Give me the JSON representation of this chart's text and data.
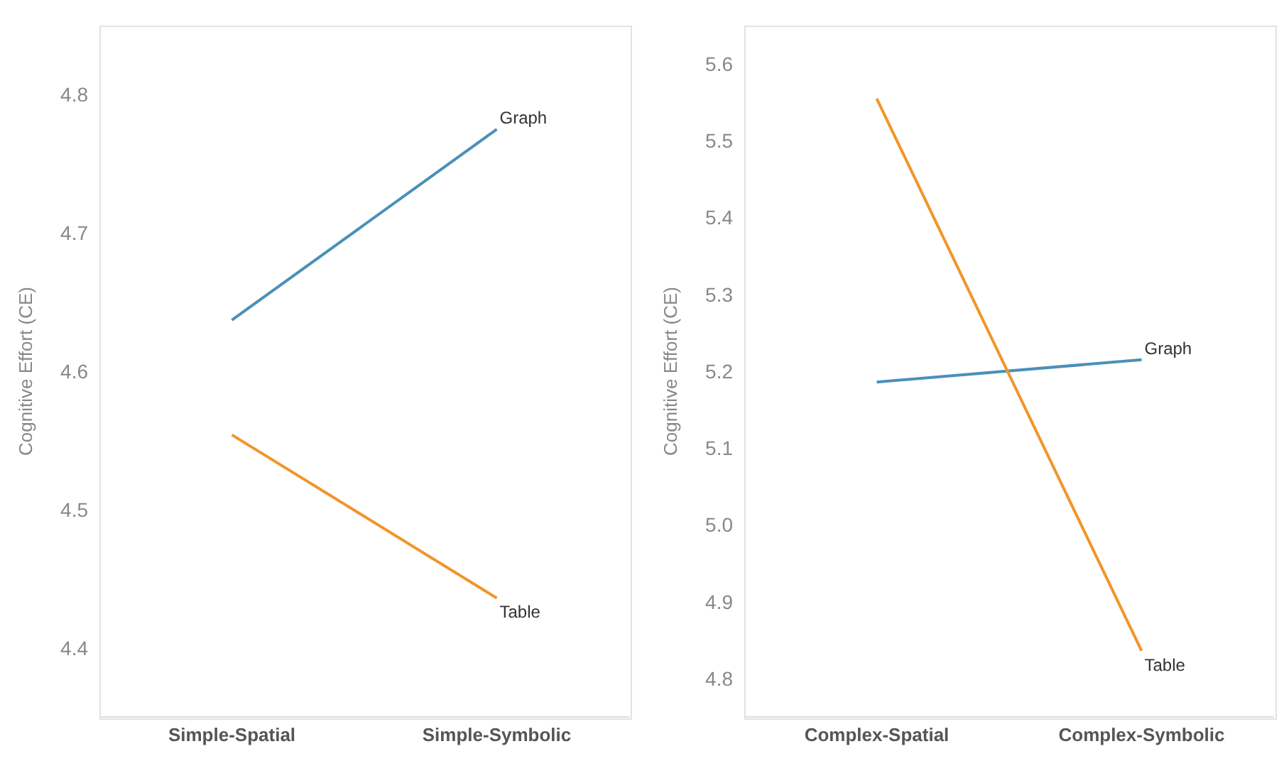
{
  "chart_data": [
    {
      "type": "line",
      "ylabel": "Cognitive Effort (CE)",
      "categories": [
        "Simple-Spatial",
        "Simple-Symbolic"
      ],
      "ylim": [
        4.35,
        4.85
      ],
      "yticks": [
        4.4,
        4.5,
        4.6,
        4.7,
        4.8
      ],
      "grid": false,
      "legend": false,
      "marker": "none",
      "series": [
        {
          "name": "Graph",
          "color": "#4a90b8",
          "values": [
            4.637,
            4.775
          ]
        },
        {
          "name": "Table",
          "color": "#f0962a",
          "values": [
            4.554,
            4.436
          ]
        }
      ]
    },
    {
      "type": "line",
      "ylabel": "Cognitive Effort (CE)",
      "categories": [
        "Complex-Spatial",
        "Complex-Symbolic"
      ],
      "ylim": [
        4.75,
        5.65
      ],
      "yticks": [
        4.8,
        4.9,
        {
          "value": 5,
          "label": "5.0"
        },
        5.1,
        5.2,
        5.3,
        5.4,
        5.5,
        5.6
      ],
      "grid": false,
      "legend": false,
      "marker": "none",
      "series": [
        {
          "name": "Graph",
          "color": "#4a90b8",
          "values": [
            5.186,
            5.215
          ]
        },
        {
          "name": "Table",
          "color": "#f0962a",
          "values": [
            5.555,
            4.836
          ]
        }
      ]
    }
  ]
}
